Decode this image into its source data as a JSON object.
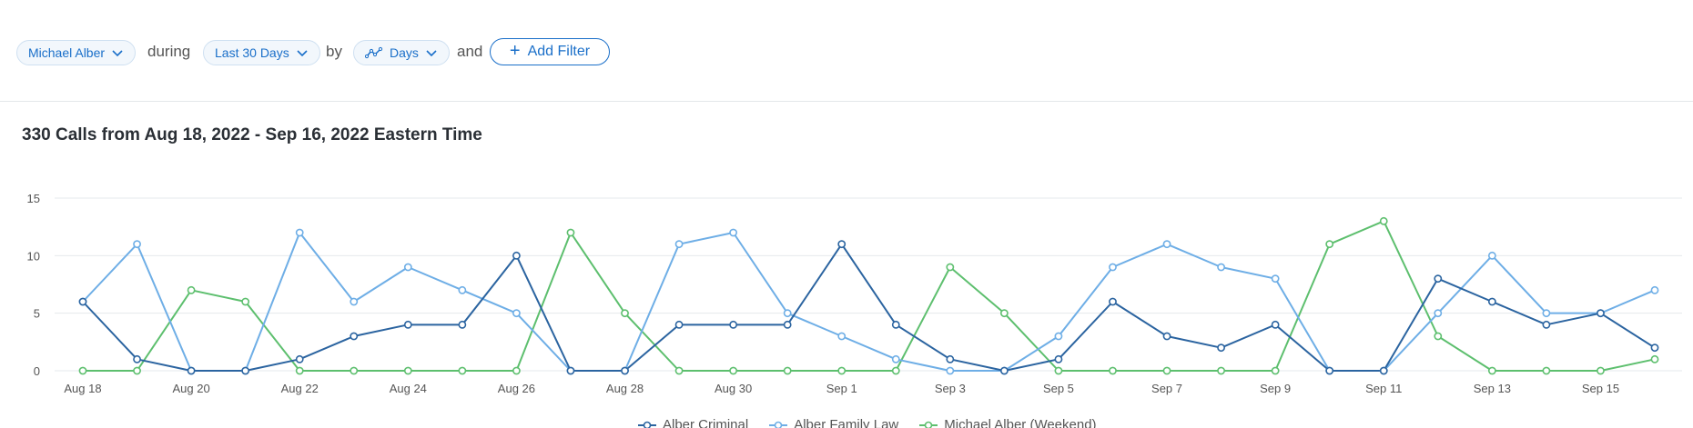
{
  "filters": {
    "person": "Michael Alber",
    "during_label": "during",
    "range": "Last 30 Days",
    "by_label": "by",
    "granularity": "Days",
    "and_label": "and",
    "add_filter": "Add Filter"
  },
  "icons": {
    "chevron": "chevron-down-icon",
    "trend": "line-chart-icon",
    "plus": "plus-icon"
  },
  "colors": {
    "accent": "#1a6fc9",
    "grid": "#e6e9ec",
    "axis_text": "#555555"
  },
  "chart_data": {
    "type": "line",
    "title": "330 Calls from Aug 18, 2022 - Sep 16, 2022 Eastern Time",
    "xlabel": "",
    "ylabel": "",
    "ylim": [
      0,
      15
    ],
    "yticks": [
      "0",
      "5",
      "10",
      "15"
    ],
    "grid": true,
    "legend_position": "bottom",
    "x": [
      "Aug 18",
      "Aug 19",
      "Aug 20",
      "Aug 21",
      "Aug 22",
      "Aug 23",
      "Aug 24",
      "Aug 25",
      "Aug 26",
      "Aug 27",
      "Aug 28",
      "Aug 29",
      "Aug 30",
      "Aug 31",
      "Sep 1",
      "Sep 2",
      "Sep 3",
      "Sep 4",
      "Sep 5",
      "Sep 6",
      "Sep 7",
      "Sep 8",
      "Sep 9",
      "Sep 10",
      "Sep 11",
      "Sep 12",
      "Sep 13",
      "Sep 14",
      "Sep 15",
      "Sep 16"
    ],
    "x_tick_labels": [
      "Aug 18",
      "",
      "Aug 20",
      "",
      "Aug 22",
      "",
      "Aug 24",
      "",
      "Aug 26",
      "",
      "Aug 28",
      "",
      "Aug 30",
      "",
      "Sep 1",
      "",
      "Sep 3",
      "",
      "Sep 5",
      "",
      "Sep 7",
      "",
      "Sep 9",
      "",
      "Sep 11",
      "",
      "Sep 13",
      "",
      "Sep 15",
      ""
    ],
    "series": [
      {
        "name": "Alber Criminal",
        "color": "#2b64a0",
        "values": [
          6,
          1,
          0,
          0,
          1,
          3,
          4,
          4,
          10,
          0,
          0,
          4,
          4,
          4,
          11,
          4,
          1,
          0,
          1,
          6,
          3,
          2,
          4,
          0,
          0,
          8,
          6,
          4,
          5,
          2
        ]
      },
      {
        "name": "Alber Family Law",
        "color": "#6eaee6",
        "values": [
          6,
          11,
          0,
          0,
          12,
          6,
          9,
          7,
          5,
          0,
          0,
          11,
          12,
          5,
          3,
          1,
          0,
          0,
          3,
          9,
          11,
          9,
          8,
          0,
          0,
          5,
          10,
          5,
          5,
          7
        ]
      },
      {
        "name": "Michael Alber (Weekend)",
        "color": "#5dbf6e",
        "values": [
          0,
          0,
          7,
          6,
          0,
          0,
          0,
          0,
          0,
          12,
          5,
          0,
          0,
          0,
          0,
          0,
          9,
          5,
          0,
          0,
          0,
          0,
          0,
          11,
          13,
          3,
          0,
          0,
          0,
          1
        ]
      }
    ]
  }
}
